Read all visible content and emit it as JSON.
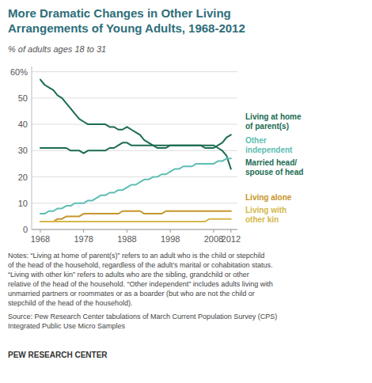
{
  "chart_data": {
    "type": "line",
    "title": "More Dramatic Changes in Other Living\nArrangements of Young Adults, 1968-2012",
    "subtitle": "% of adults ages 18 to 31",
    "x": [
      1968,
      1969,
      1970,
      1971,
      1972,
      1973,
      1974,
      1975,
      1976,
      1977,
      1978,
      1979,
      1980,
      1981,
      1982,
      1983,
      1984,
      1985,
      1986,
      1987,
      1988,
      1989,
      1990,
      1991,
      1992,
      1993,
      1994,
      1995,
      1996,
      1997,
      1998,
      1999,
      2000,
      2001,
      2002,
      2003,
      2004,
      2005,
      2006,
      2007,
      2008,
      2009,
      2010,
      2011,
      2012
    ],
    "series": [
      {
        "name": "Living at home\nof parent(s)",
        "color": "#1a6b52",
        "values": [
          57,
          55,
          54,
          53,
          51,
          50,
          48,
          46,
          44,
          42,
          41,
          40,
          40,
          40,
          40,
          40,
          39,
          39,
          38,
          38,
          39,
          38,
          37,
          36,
          34,
          33,
          32,
          32,
          32,
          32,
          32,
          32,
          32,
          32,
          32,
          32,
          32,
          32,
          31,
          31,
          31,
          32,
          33,
          35,
          36
        ]
      },
      {
        "name": "Married head/\nspouse of head",
        "color": "#1a6b52",
        "values": [
          31,
          31,
          31,
          31,
          31,
          31,
          31,
          30,
          30,
          30,
          29,
          30,
          30,
          30,
          30,
          30,
          31,
          31,
          32,
          33,
          33,
          32,
          32,
          32,
          32,
          32,
          32,
          31,
          31,
          31,
          32,
          32,
          32,
          32,
          32,
          32,
          32,
          32,
          32,
          32,
          32,
          31,
          30,
          28,
          23
        ]
      },
      {
        "name": "Other\nindependent",
        "color": "#5dbdb2",
        "values": [
          6,
          6,
          7,
          7,
          8,
          8,
          9,
          9,
          10,
          10,
          10,
          11,
          11,
          12,
          13,
          13,
          14,
          14,
          15,
          15,
          16,
          17,
          17,
          18,
          19,
          19,
          20,
          20,
          21,
          21,
          22,
          23,
          23,
          24,
          24,
          24,
          25,
          25,
          25,
          25,
          25,
          26,
          26,
          27,
          27
        ]
      },
      {
        "name": "Living alone",
        "color": "#c8952a",
        "values": [
          3,
          3,
          3,
          3,
          4,
          4,
          5,
          5,
          5,
          5,
          6,
          6,
          6,
          6,
          6,
          6,
          6,
          6,
          6,
          7,
          7,
          7,
          7,
          7,
          6,
          6,
          6,
          6,
          6,
          7,
          7,
          7,
          7,
          7,
          7,
          7,
          7,
          7,
          7,
          7,
          7,
          7,
          7,
          7,
          7
        ]
      },
      {
        "name": "Living with\nother kin",
        "color": "#d4b84a",
        "values": [
          3,
          3,
          3,
          3,
          3,
          3,
          3,
          3,
          3,
          3,
          3,
          3,
          3,
          3,
          3,
          3,
          3,
          3,
          3,
          3,
          3,
          3,
          3,
          3,
          3,
          3,
          3,
          3,
          3,
          3,
          3,
          3,
          3,
          3,
          3,
          3,
          3,
          3,
          3,
          4,
          4,
          4,
          4,
          4,
          4
        ]
      }
    ],
    "xlim": [
      1966,
      2013.5
    ],
    "xticks": [
      1968,
      1978,
      1988,
      1998,
      2008,
      2012
    ],
    "ylim": [
      0,
      62
    ],
    "yticks": [
      0,
      10,
      20,
      30,
      40,
      50,
      {
        "value": 60,
        "label": "60%"
      }
    ],
    "grid": true,
    "annotations": [
      "Notes: “Living at home of parent(s)” refers to an adult who is the child or stepchild\nof the head of the household, regardless of the adult’s marital or cohabitation status.\n“Living with other kin” refers to adults who are the sibling, grandchild or other\nrelative of the head of the household. “Other independent” includes adults living with\nunmarried partners or roommates or as a boarder (but who are not the child or\nstepchild of the head of the household).",
      "Source: Pew Research Center tabulations of March Current Population Survey (CPS)\nIntegrated Public Use Micro Samples",
      "PEW RESEARCH CENTER"
    ]
  }
}
